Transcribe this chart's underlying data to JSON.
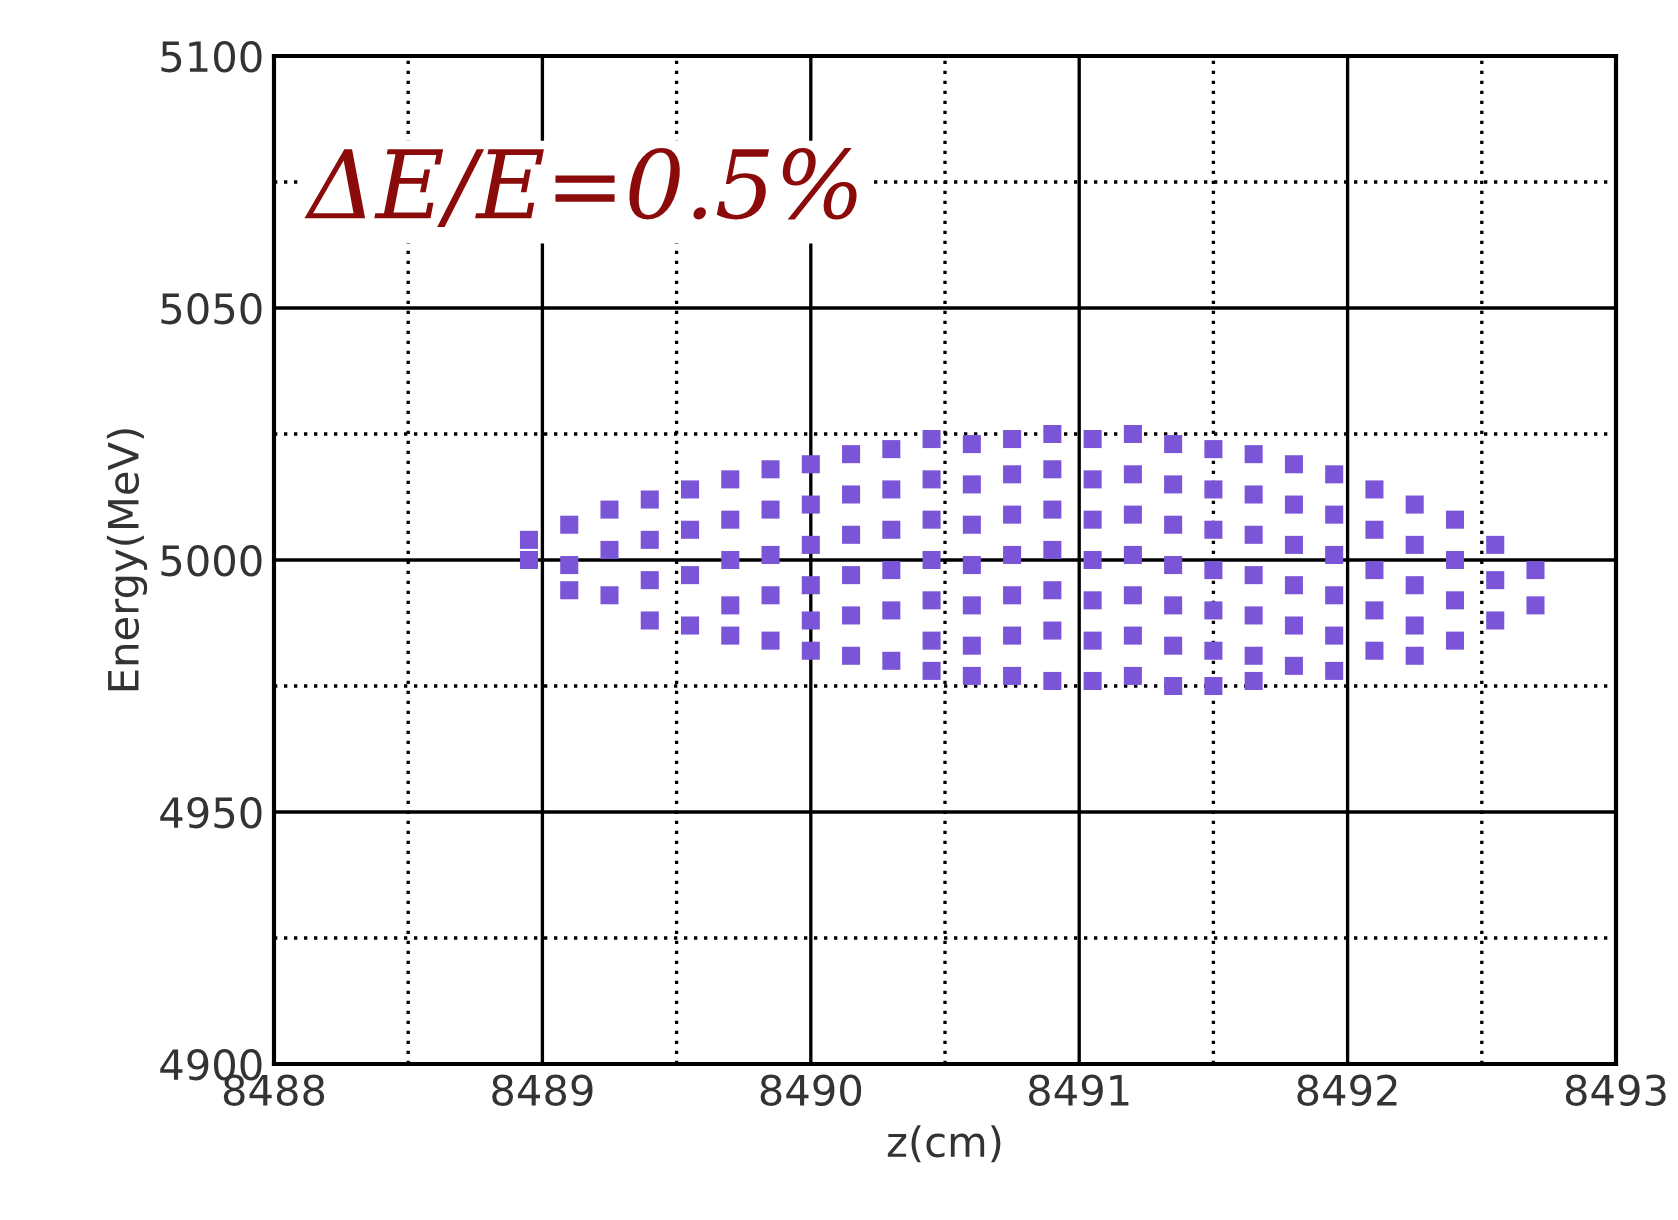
{
  "chart_data": {
    "type": "scatter",
    "xlabel": "z(cm)",
    "ylabel": "Energy(MeV)",
    "annotations": [
      "ΔE/E=0.5%"
    ],
    "xlim": [
      8488,
      8493
    ],
    "xticks": [
      8488,
      8489,
      8490,
      8491,
      8492,
      8493
    ],
    "ylim": [
      4900,
      5100
    ],
    "yticks": [
      4900,
      4950,
      5000,
      5050,
      5100
    ],
    "grid": true,
    "marker": "square",
    "series": [
      {
        "color": "#7a55d8",
        "x": [
          8488.95,
          8488.95,
          8489.1,
          8489.1,
          8489.1,
          8489.25,
          8489.25,
          8489.25,
          8489.4,
          8489.4,
          8489.4,
          8489.4,
          8489.55,
          8489.55,
          8489.55,
          8489.55,
          8489.7,
          8489.7,
          8489.7,
          8489.7,
          8489.7,
          8489.85,
          8489.85,
          8489.85,
          8489.85,
          8489.85,
          8490.0,
          8490.0,
          8490.0,
          8490.0,
          8490.0,
          8490.0,
          8490.15,
          8490.15,
          8490.15,
          8490.15,
          8490.15,
          8490.15,
          8490.3,
          8490.3,
          8490.3,
          8490.3,
          8490.3,
          8490.3,
          8490.45,
          8490.45,
          8490.45,
          8490.45,
          8490.45,
          8490.45,
          8490.45,
          8490.6,
          8490.6,
          8490.6,
          8490.6,
          8490.6,
          8490.6,
          8490.6,
          8490.75,
          8490.75,
          8490.75,
          8490.75,
          8490.75,
          8490.75,
          8490.75,
          8490.9,
          8490.9,
          8490.9,
          8490.9,
          8490.9,
          8490.9,
          8490.9,
          8491.05,
          8491.05,
          8491.05,
          8491.05,
          8491.05,
          8491.05,
          8491.05,
          8491.2,
          8491.2,
          8491.2,
          8491.2,
          8491.2,
          8491.2,
          8491.2,
          8491.35,
          8491.35,
          8491.35,
          8491.35,
          8491.35,
          8491.35,
          8491.35,
          8491.5,
          8491.5,
          8491.5,
          8491.5,
          8491.5,
          8491.5,
          8491.5,
          8491.65,
          8491.65,
          8491.65,
          8491.65,
          8491.65,
          8491.65,
          8491.65,
          8491.8,
          8491.8,
          8491.8,
          8491.8,
          8491.8,
          8491.8,
          8491.95,
          8491.95,
          8491.95,
          8491.95,
          8491.95,
          8491.95,
          8492.1,
          8492.1,
          8492.1,
          8492.1,
          8492.1,
          8492.25,
          8492.25,
          8492.25,
          8492.25,
          8492.25,
          8492.4,
          8492.4,
          8492.4,
          8492.4,
          8492.55,
          8492.55,
          8492.55,
          8492.7,
          8492.7
        ],
        "values": [
          5004,
          5000,
          5007,
          4999,
          4994,
          5010,
          5002,
          4993,
          5012,
          5004,
          4996,
          4988,
          5014,
          5006,
          4997,
          4987,
          5016,
          5008,
          5000,
          4991,
          4985,
          5018,
          5010,
          5001,
          4993,
          4984,
          5019,
          5011,
          5003,
          4995,
          4988,
          4982,
          5021,
          5013,
          5005,
          4997,
          4989,
          4981,
          5022,
          5014,
          5006,
          4998,
          4990,
          4980,
          5024,
          5016,
          5008,
          5000,
          4992,
          4984,
          4978,
          5023,
          5015,
          5007,
          4999,
          4991,
          4983,
          4977,
          5024,
          5017,
          5009,
          5001,
          4993,
          4985,
          4977,
          5025,
          5018,
          5010,
          5002,
          4994,
          4986,
          4976,
          5024,
          5016,
          5008,
          5000,
          4992,
          4984,
          4976,
          5025,
          5017,
          5009,
          5001,
          4993,
          4985,
          4977,
          5023,
          5015,
          5007,
          4999,
          4991,
          4983,
          4975,
          5022,
          5014,
          5006,
          4998,
          4990,
          4982,
          4975,
          5021,
          5013,
          5005,
          4997,
          4989,
          4981,
          4976,
          5019,
          5011,
          5003,
          4995,
          4987,
          4979,
          5017,
          5009,
          5001,
          4993,
          4985,
          4978,
          5014,
          5006,
          4998,
          4990,
          4982,
          5011,
          5003,
          4995,
          4987,
          4981,
          5008,
          5000,
          4992,
          4984,
          5003,
          4996,
          4988,
          4998,
          4991
        ]
      }
    ]
  }
}
